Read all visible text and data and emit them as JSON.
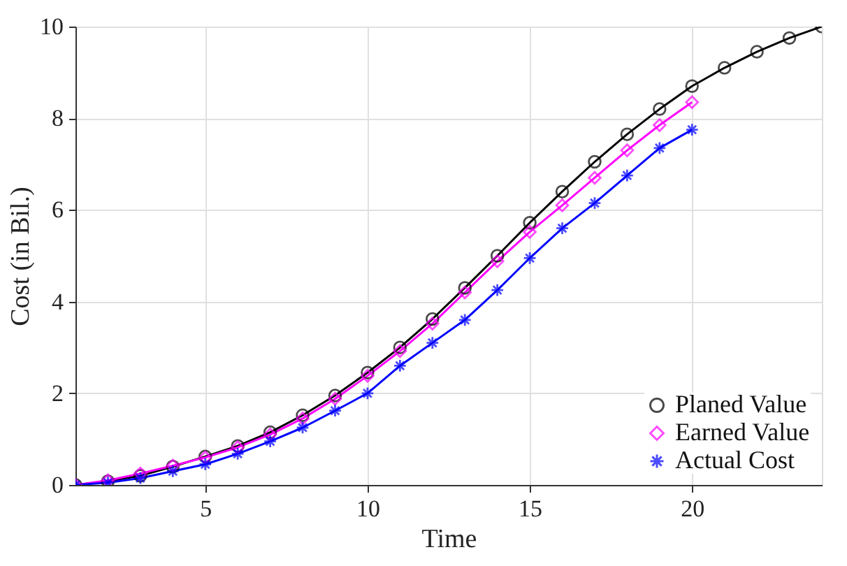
{
  "chart_data": {
    "type": "line",
    "xlabel": "Time",
    "ylabel": "Cost (in Bil.)",
    "x": [
      1,
      2,
      3,
      4,
      5,
      6,
      7,
      8,
      9,
      10,
      11,
      12,
      13,
      14,
      15,
      16,
      17,
      18,
      19,
      20,
      21,
      22,
      23,
      24
    ],
    "series": [
      {
        "name": "Planed Value",
        "color": "#000000",
        "marker": "circle",
        "values": [
          0,
          0.08,
          0.2,
          0.4,
          0.62,
          0.85,
          1.15,
          1.52,
          1.95,
          2.45,
          3.0,
          3.62,
          4.3,
          5.0,
          5.72,
          6.4,
          7.05,
          7.65,
          8.2,
          8.7,
          9.1,
          9.45,
          9.75,
          10.0
        ]
      },
      {
        "name": "Earned Value",
        "color": "#ff00ff",
        "marker": "diamond",
        "values": [
          0,
          0.1,
          0.25,
          0.42,
          0.6,
          0.82,
          1.1,
          1.45,
          1.88,
          2.38,
          2.92,
          3.52,
          4.2,
          4.88,
          5.52,
          6.1,
          6.7,
          7.3,
          7.85,
          8.35,
          null,
          null,
          null,
          null
        ]
      },
      {
        "name": "Actual Cost",
        "color": "#0000ff",
        "marker": "cross",
        "values": [
          0,
          0.05,
          0.15,
          0.3,
          0.45,
          0.68,
          0.95,
          1.25,
          1.62,
          2.0,
          2.6,
          3.1,
          3.6,
          4.25,
          4.95,
          5.6,
          6.15,
          6.75,
          7.35,
          7.75,
          null,
          null,
          null,
          null
        ]
      }
    ],
    "xlim": [
      1,
      24
    ],
    "xticks": [
      5,
      10,
      15,
      20
    ],
    "ylim": [
      0,
      10
    ],
    "yticks": [
      0,
      2,
      4,
      6,
      8,
      10
    ],
    "grid": true,
    "legend": "bottom right",
    "line_style": "solid"
  }
}
